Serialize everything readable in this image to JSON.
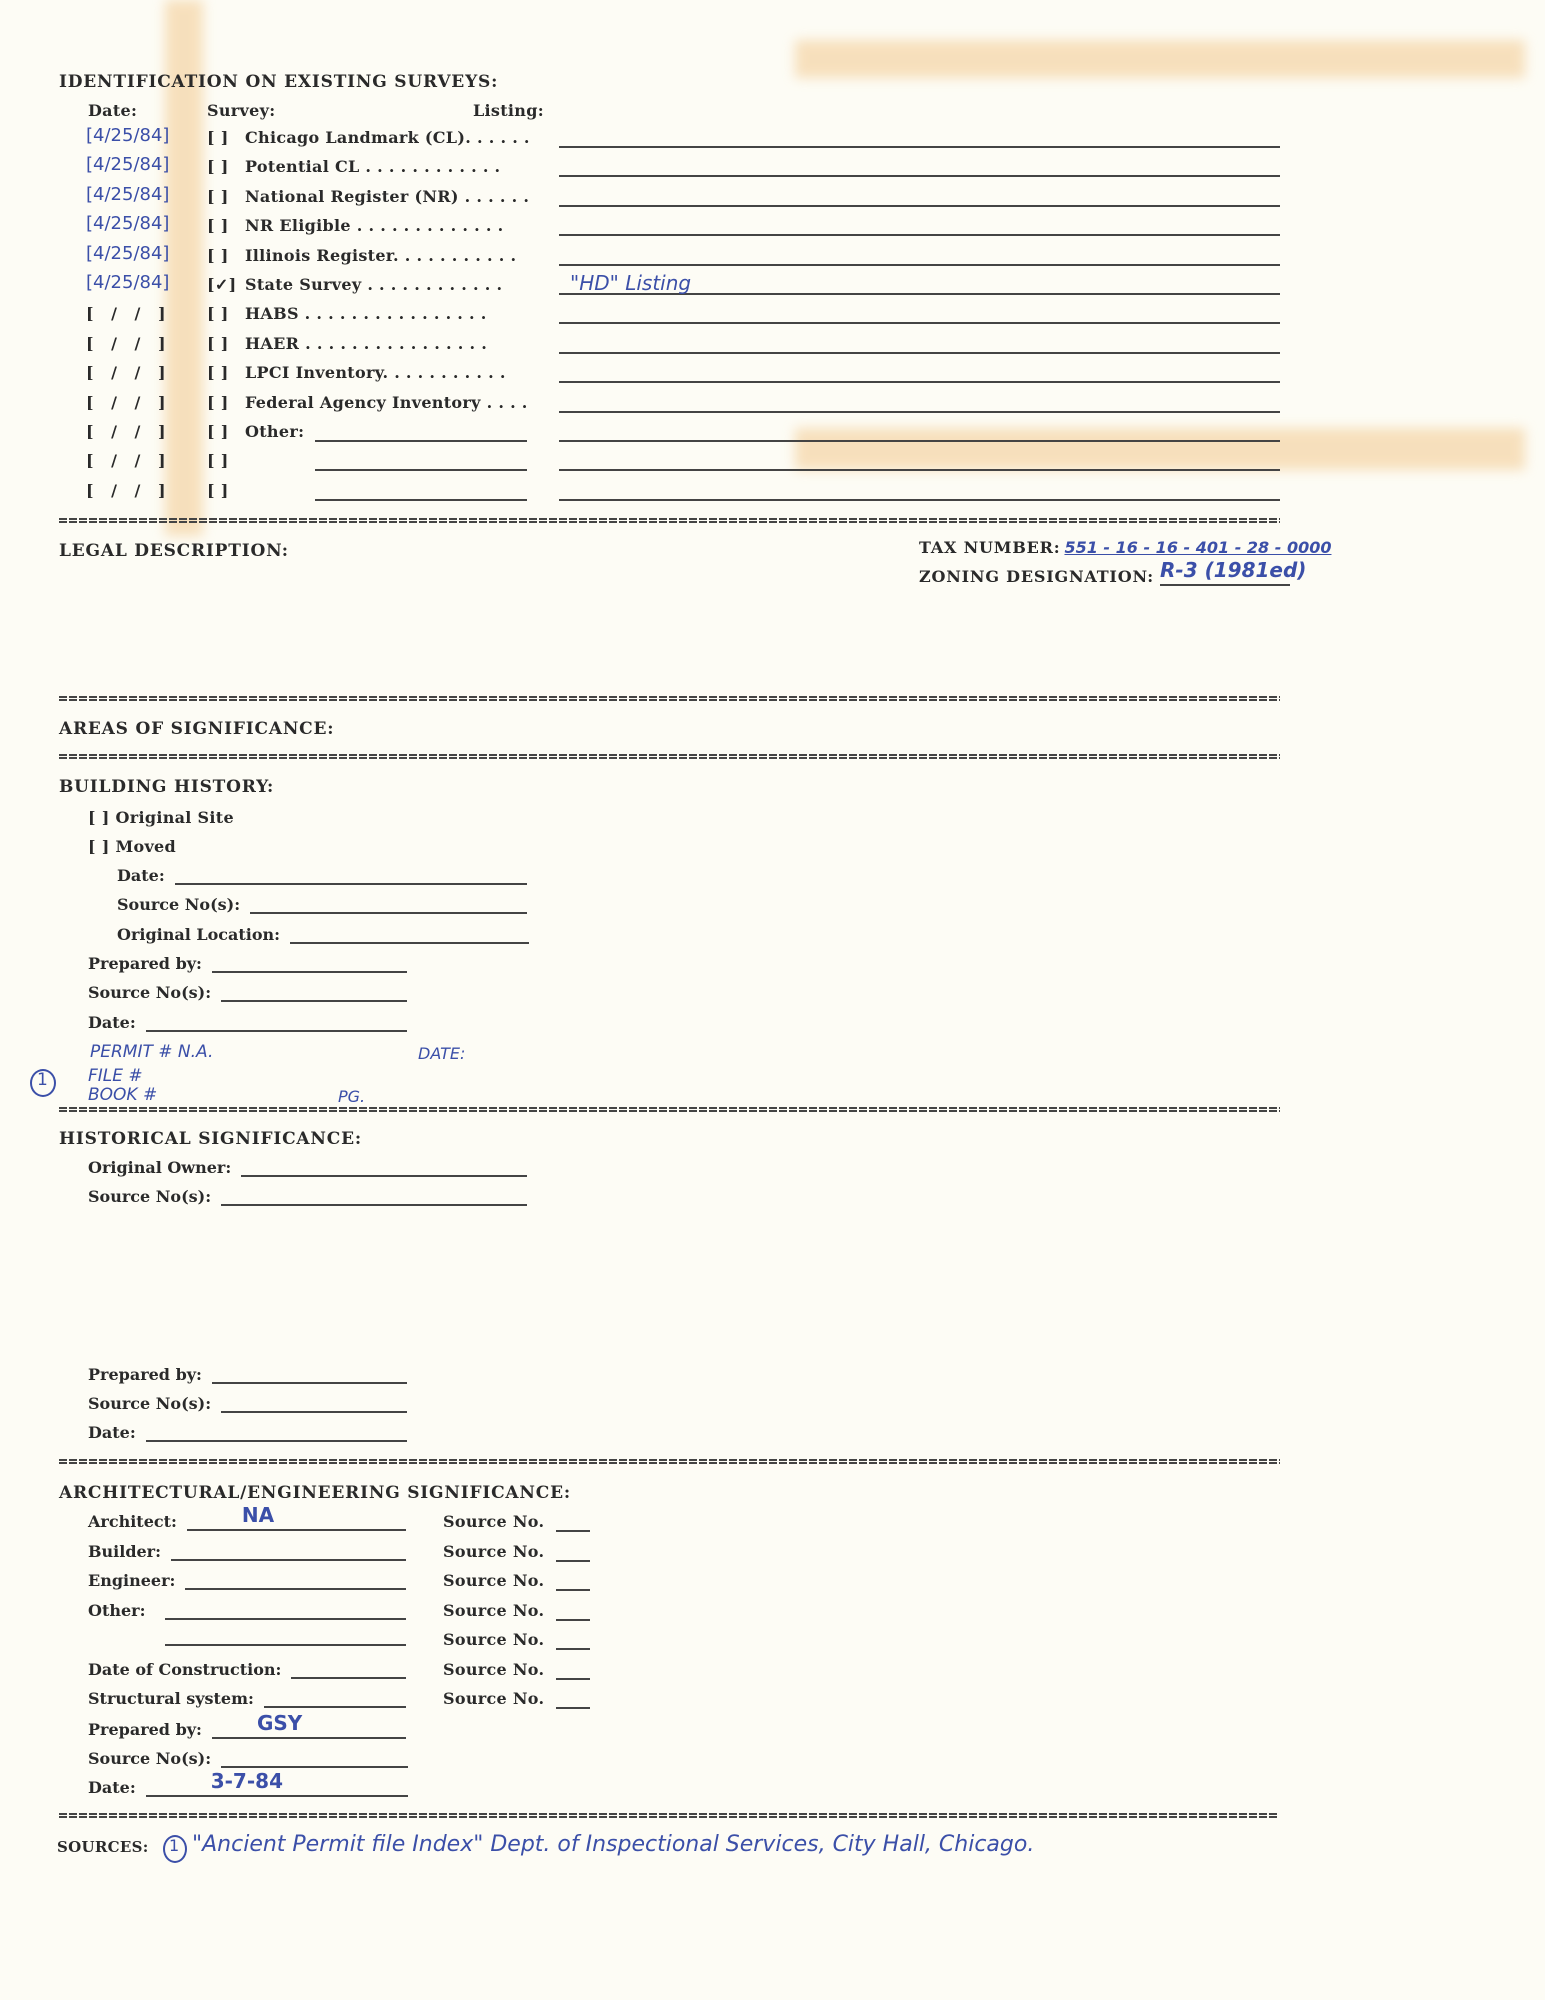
{
  "identification": {
    "heading": "IDENTIFICATION ON EXISTING SURVEYS:",
    "col_date": "Date:",
    "col_survey": "Survey:",
    "col_listing": "Listing:",
    "rows": [
      {
        "date": "[4/25/84]",
        "check": "[ ]",
        "label": "Chicago Landmark (CL). . . . . .",
        "listing": ""
      },
      {
        "date": "[4/25/84]",
        "check": "[ ]",
        "label": "Potential CL . . . . . . . . . . . .",
        "listing": ""
      },
      {
        "date": "[4/25/84]",
        "check": "[ ]",
        "label": "National Register (NR) . . . . . .",
        "listing": ""
      },
      {
        "date": "[4/25/84]",
        "check": "[ ]",
        "label": "NR Eligible . . . . . . . . . . . . .",
        "listing": ""
      },
      {
        "date": "[4/25/84]",
        "check": "[ ]",
        "label": "Illinois Register. . . . . . . . . . .",
        "listing": ""
      },
      {
        "date": "[4/25/84]",
        "check": "[✓]",
        "label": "State Survey . . . . . . . . . . . .",
        "listing": "\"HD\" Listing"
      },
      {
        "date": "[ /  /  ]",
        "check": "[ ]",
        "label": "HABS . . . . . . . . . . . . . . . .",
        "listing": ""
      },
      {
        "date": "[ /  /  ]",
        "check": "[ ]",
        "label": "HAER . . . . . . . . . . . . . . . .",
        "listing": ""
      },
      {
        "date": "[ /  /  ]",
        "check": "[ ]",
        "label": "LPCI Inventory. . . . . . . . . . .",
        "listing": ""
      },
      {
        "date": "[ /  /  ]",
        "check": "[ ]",
        "label": "Federal Agency Inventory . . . .",
        "listing": ""
      },
      {
        "date": "[ /  /  ]",
        "check": "[ ]",
        "label": "Other:",
        "listing": "",
        "other": true
      },
      {
        "date": "[ /  /  ]",
        "check": "[ ]",
        "label": "",
        "listing": "",
        "other": true
      },
      {
        "date": "[ /  /  ]",
        "check": "[ ]",
        "label": "",
        "listing": "",
        "other": true
      }
    ]
  },
  "legal": {
    "heading": "LEGAL DESCRIPTION:",
    "tax_label": "TAX NUMBER:",
    "tax_value": "551 - 16 - 16 - 401 - 28 - 0000",
    "zoning_label": "ZONING DESIGNATION:",
    "zoning_value": "R-3 (1981ed)"
  },
  "areas": {
    "heading": "AREAS OF SIGNIFICANCE:"
  },
  "building_history": {
    "heading": "BUILDING HISTORY:",
    "original_site": "[ ]  Original Site",
    "moved": "[ ]  Moved",
    "moved_date": "Date:",
    "moved_source": "Source No(s):",
    "original_location": "Original Location:",
    "prepared_by": "Prepared by:",
    "source": "Source No(s):",
    "date": "Date:",
    "notes": {
      "marker": "1",
      "permit": "PERMIT # N.A.",
      "date": "DATE:",
      "file": "FILE #",
      "book": "BOOK #",
      "page": "PG."
    }
  },
  "historical": {
    "heading": "HISTORICAL SIGNIFICANCE:",
    "original_owner": "Original Owner:",
    "source": "Source No(s):",
    "prepared_by": "Prepared by:",
    "source2": "Source No(s):",
    "date": "Date:"
  },
  "architectural": {
    "heading": "ARCHITECTURAL/ENGINEERING SIGNIFICANCE:",
    "architect": "Architect:",
    "architect_value": "NA",
    "builder": "Builder:",
    "engineer": "Engineer:",
    "other": "Other:",
    "date_of_construction": "Date of Construction:",
    "structural_system": "Structural system:",
    "prepared_by": "Prepared by:",
    "prepared_by_value": "GSY",
    "source": "Source No(s):",
    "date": "Date:",
    "date_value": "3-7-84",
    "source_no_label": "Source No.",
    "source_no_count": 7
  },
  "sources": {
    "label": "SOURCES:",
    "marker": "1",
    "text": "\"Ancient Permit file Index\" Dept. of Inspectional Services, City Hall, Chicago."
  },
  "colors": {
    "ink": "#3b4fa8",
    "paper": "#fdfcf5",
    "stain": "#f2c98e"
  }
}
